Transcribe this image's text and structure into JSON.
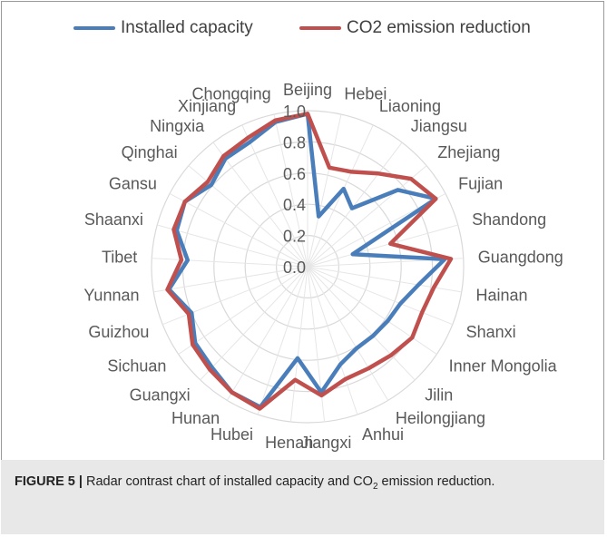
{
  "chart_data": {
    "type": "radar",
    "categories": [
      "Beijing",
      "Hebei",
      "Liaoning",
      "Jiangsu",
      "Zhejiang",
      "Fujian",
      "Shandong",
      "Guangdong",
      "Hainan",
      "Shanxi",
      "Inner Mongolia",
      "Jilin",
      "Heilongjiang",
      "Anhui",
      "Jiangxi",
      "Henan",
      "Hubei",
      "Hunan",
      "Guangxi",
      "Sichuan",
      "Guizhou",
      "Yunnan",
      "Tibet",
      "Shaanxi",
      "Gansu",
      "Qinghai",
      "Ningxia",
      "Xinjiang",
      "Chongqing"
    ],
    "series": [
      {
        "name": "Installed capacity",
        "color": "#4a7ebb",
        "values": [
          0.98,
          0.33,
          0.55,
          0.47,
          0.76,
          0.93,
          0.3,
          0.88,
          0.72,
          0.64,
          0.62,
          0.61,
          0.61,
          0.66,
          0.81,
          0.59,
          0.95,
          0.94,
          0.89,
          0.87,
          0.8,
          0.9,
          0.77,
          0.87,
          0.89,
          0.81,
          0.87,
          0.88,
          0.95
        ]
      },
      {
        "name": "CO2 emission reduction",
        "color": "#c0504d",
        "values": [
          0.98,
          0.65,
          0.67,
          0.75,
          0.87,
          0.93,
          0.55,
          0.92,
          0.82,
          0.79,
          0.81,
          0.78,
          0.76,
          0.76,
          0.83,
          0.73,
          0.96,
          0.94,
          0.91,
          0.89,
          0.82,
          0.91,
          0.81,
          0.89,
          0.89,
          0.84,
          0.89,
          0.91,
          0.96
        ]
      }
    ],
    "axis_ticks": [
      "0.0",
      "0.2",
      "0.4",
      "0.6",
      "0.8",
      "1.0"
    ],
    "rlim": [
      0,
      1.0
    ],
    "legend_position": "top"
  },
  "caption": {
    "label": "FIGURE 5 |",
    "text_before": " Radar contrast chart of installed capacity and CO",
    "subscript": "2",
    "text_after": " emission reduction."
  }
}
